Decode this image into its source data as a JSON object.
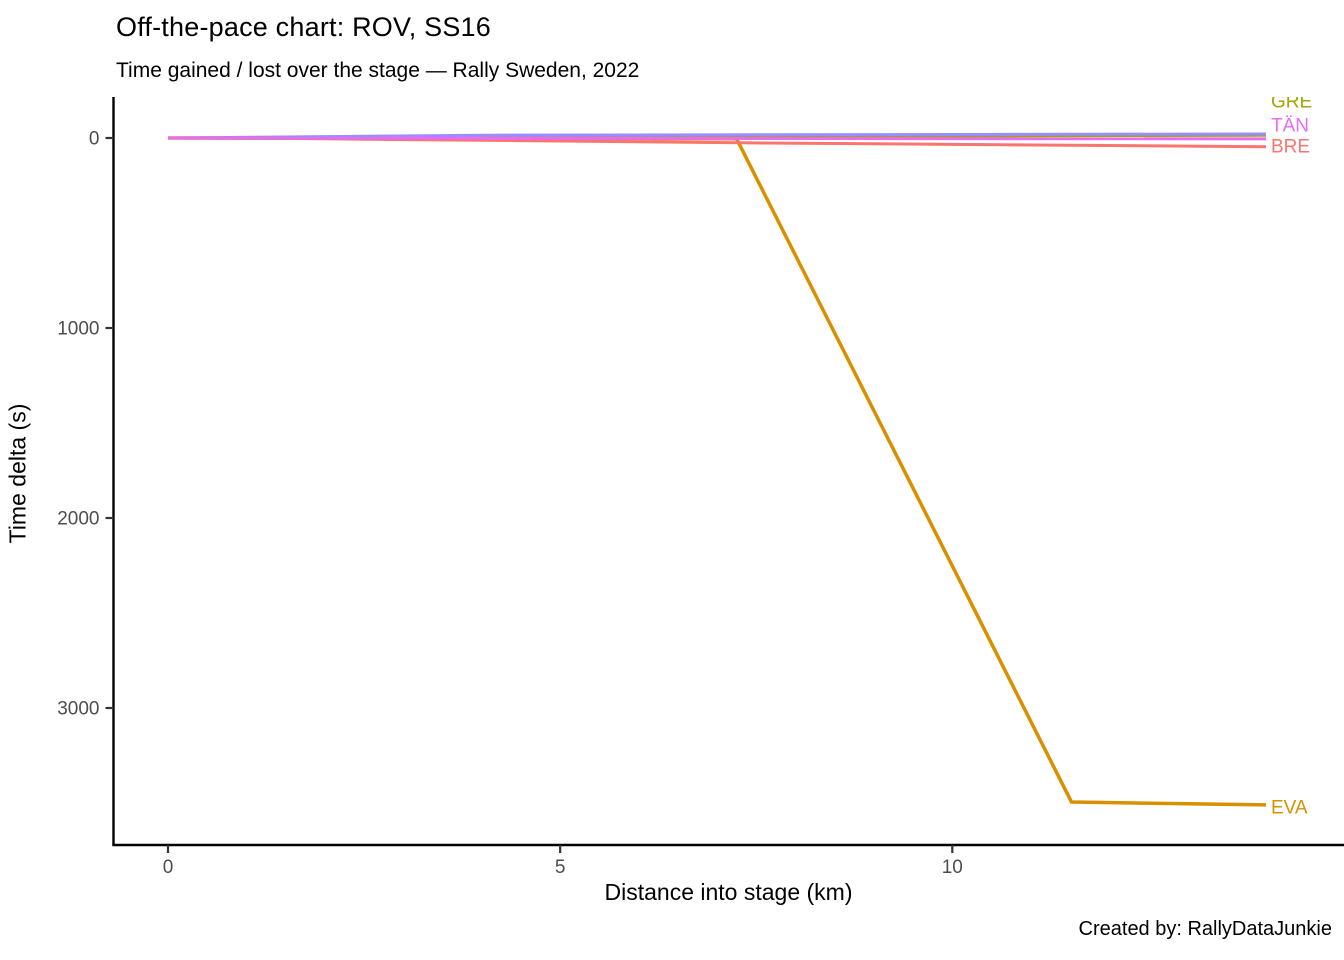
{
  "header": {
    "title": "Off-the-pace chart: ROV, SS16",
    "subtitle": "Time gained / lost over the stage — Rally Sweden, 2022"
  },
  "caption": "Created by: RallyDataJunkie",
  "colors": {
    "axis": "#000000",
    "tick_label": "#4D4D4D",
    "background": "#ffffff"
  },
  "chart_data": {
    "type": "line",
    "title": "Off-the-pace chart: ROV, SS16",
    "subtitle": "Time gained / lost over the stage — Rally Sweden, 2022",
    "xlabel": "Distance into stage (km)",
    "ylabel": "Time delta (s)",
    "x_unit": "km",
    "y_unit": "s",
    "x_ticks": [
      0,
      5,
      10
    ],
    "y_ticks": [
      0,
      1000,
      2000,
      3000
    ],
    "xlim": [
      -0.7,
      15.0
    ],
    "ylim": [
      -215,
      3720
    ],
    "y_axis_inverted": true,
    "grid": false,
    "legend": "direct-labels-at-line-end",
    "series": [
      {
        "code": "EVA",
        "color": "#D89000",
        "label_visible": true,
        "points": [
          [
            0,
            0
          ],
          [
            7.25,
            4
          ],
          [
            11.52,
            3495
          ],
          [
            14.0,
            3510
          ]
        ]
      },
      {
        "code": "GRE",
        "color": "#A3A500",
        "label_visible": true,
        "points": [
          [
            0,
            0
          ],
          [
            14.0,
            -15
          ]
        ]
      },
      {
        "code": "",
        "color": "#9590FF",
        "label_visible": false,
        "points": [
          [
            0,
            0
          ],
          [
            4,
            -15
          ],
          [
            14.0,
            -21
          ]
        ]
      },
      {
        "code": "BRE",
        "color": "#F8766D",
        "label_visible": true,
        "points": [
          [
            0,
            0
          ],
          [
            1.5,
            2
          ],
          [
            7.3,
            25
          ],
          [
            14.0,
            46
          ]
        ]
      },
      {
        "code": "TÄN",
        "color": "#E76BF3",
        "label_visible": true,
        "points": [
          [
            0,
            0
          ],
          [
            14.0,
            5
          ]
        ]
      }
    ]
  }
}
